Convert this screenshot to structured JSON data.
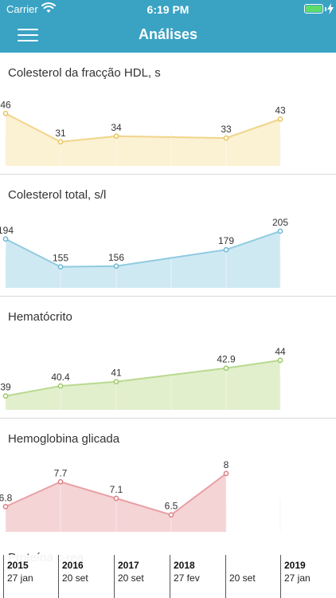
{
  "status_bar": {
    "carrier": "Carrier",
    "time": "6:19 PM",
    "battery_level": 1.0
  },
  "nav": {
    "title": "Análises",
    "menu_icon": "hamburger-menu-icon"
  },
  "charts": [
    {
      "title": "Colesterol da fracção HDL, s",
      "values": [
        46,
        31,
        34,
        null,
        33,
        43
      ],
      "labels": [
        "46",
        "31",
        "34",
        "",
        "33",
        "43"
      ],
      "line_color": "#f0d58a",
      "fill_color": "#f9ecc4",
      "point_color": "#e9c35e",
      "ylim": [
        20,
        52
      ]
    },
    {
      "title": "Colesterol total, s/l",
      "values": [
        194,
        155,
        156,
        null,
        179,
        205
      ],
      "labels": [
        "194",
        "155",
        "156",
        "",
        "179",
        "205"
      ],
      "line_color": "#8fcbe0",
      "fill_color": "#bfe2ee",
      "point_color": "#6cb8d4",
      "ylim": [
        130,
        215
      ]
    },
    {
      "title": "Hematócrito",
      "values": [
        39,
        40.4,
        41,
        null,
        42.9,
        44
      ],
      "labels": [
        "39",
        "40.4",
        "41",
        "",
        "42.9",
        "44"
      ],
      "line_color": "#b9d98f",
      "fill_color": "#d7eabb",
      "point_color": "#9cc86a",
      "ylim": [
        37.5,
        46
      ]
    },
    {
      "title": "Hemoglobina glicada",
      "values": [
        6.8,
        7.7,
        7.1,
        6.5,
        8,
        null
      ],
      "labels": [
        "6.8",
        "7.7",
        "7.1",
        "6.5",
        "8",
        ""
      ],
      "line_color": "#e9a0a4",
      "fill_color": "#f2c6c8",
      "point_color": "#de7e84",
      "ylim": [
        6.0,
        8.2
      ]
    }
  ],
  "next_section": {
    "title": "Proteína c-rea"
  },
  "timeline": [
    {
      "year": "2015",
      "day": "27 jan"
    },
    {
      "year": "2016",
      "day": "20 set"
    },
    {
      "year": "2017",
      "day": "20 set"
    },
    {
      "year": "2018",
      "day": "27 fev"
    },
    {
      "year": "",
      "day": "20 set"
    },
    {
      "year": "2019",
      "day": "27 jan"
    }
  ]
}
